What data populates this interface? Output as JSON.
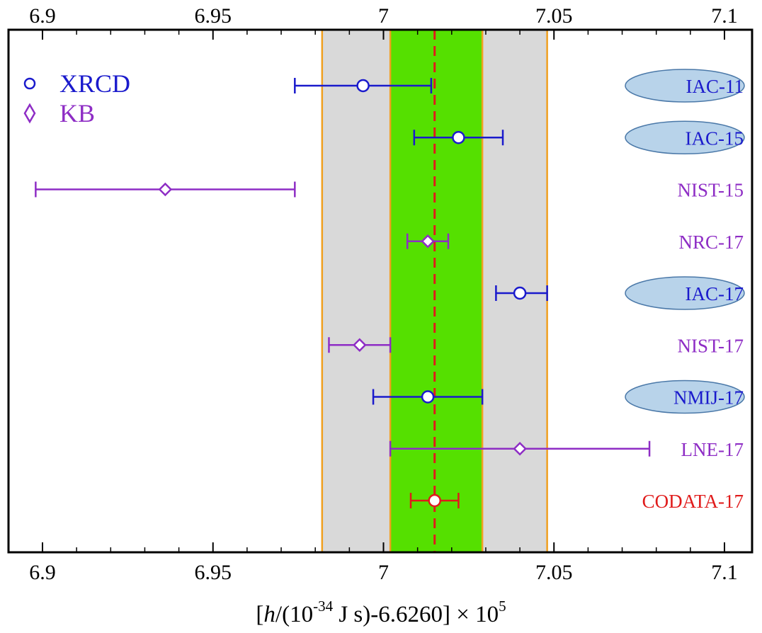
{
  "colors": {
    "xrcd": "#1a1acc",
    "kb": "#8e2dc5",
    "codata": "#e01b1b",
    "band_outer": "#d9d9d9",
    "band_inner": "#55e000",
    "band_edge": "#f0a020",
    "label_highlight": "#b8d3ea"
  },
  "chart_data": {
    "type": "scatter",
    "subtype": "forest-plot-with-error-bars",
    "xlim": [
      6.89,
      7.11
    ],
    "xticks": [
      "6.9",
      "6.95",
      "7",
      "7.05",
      "7.1"
    ],
    "xtick_values": [
      6.9,
      6.95,
      7.0,
      7.05,
      7.1
    ],
    "xlabel": {
      "pre": "[",
      "h": "h",
      "mid1": "/(10",
      "sup1": "-34",
      "mid2": " J s)-6.6260] × 10",
      "sup2": "5"
    },
    "legend": {
      "placement": "top-left",
      "entries": [
        {
          "marker": "○",
          "label": "XRCD",
          "method": "xrcd"
        },
        {
          "marker": "◊",
          "label": "KB",
          "method": "kb"
        }
      ]
    },
    "bands": {
      "outer": [
        6.982,
        7.048
      ],
      "inner": [
        7.002,
        7.029
      ],
      "reference_line": 7.015
    },
    "grid": false,
    "points": [
      {
        "label": "IAC-11",
        "method": "xrcd",
        "value": 6.994,
        "err_low": 6.974,
        "err_high": 7.014,
        "highlight": true
      },
      {
        "label": "IAC-15",
        "method": "xrcd",
        "value": 7.022,
        "err_low": 7.009,
        "err_high": 7.035,
        "highlight": true
      },
      {
        "label": "NIST-15",
        "method": "kb",
        "value": 6.936,
        "err_low": 6.898,
        "err_high": 6.974,
        "highlight": false
      },
      {
        "label": "NRC-17",
        "method": "kb",
        "value": 7.013,
        "err_low": 7.007,
        "err_high": 7.019,
        "highlight": false
      },
      {
        "label": "IAC-17",
        "method": "xrcd",
        "value": 7.04,
        "err_low": 7.033,
        "err_high": 7.048,
        "highlight": true
      },
      {
        "label": "NIST-17",
        "method": "kb",
        "value": 6.993,
        "err_low": 6.984,
        "err_high": 7.002,
        "highlight": false
      },
      {
        "label": "NMIJ-17",
        "method": "xrcd",
        "value": 7.013,
        "err_low": 6.997,
        "err_high": 7.029,
        "highlight": true
      },
      {
        "label": "LNE-17",
        "method": "kb",
        "value": 7.04,
        "err_low": 7.002,
        "err_high": 7.078,
        "highlight": false
      },
      {
        "label": "CODATA-17",
        "method": "codata",
        "value": 7.015,
        "err_low": 7.008,
        "err_high": 7.022,
        "highlight": false
      }
    ]
  }
}
